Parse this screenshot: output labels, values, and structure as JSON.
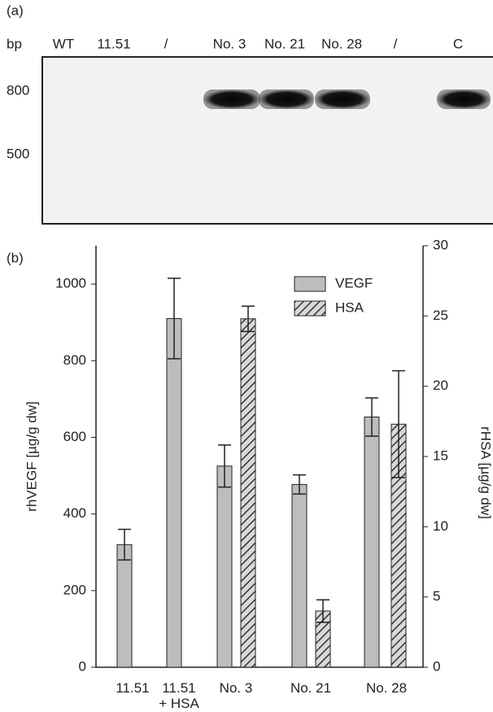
{
  "panel_a": {
    "label": "(a)",
    "unit": "bp",
    "lanes": [
      "WT",
      "11.51",
      "/",
      "No. 3",
      "No. 21",
      "No. 28",
      "/",
      "C"
    ],
    "markers": [
      "800",
      "500"
    ]
  },
  "chart_data": {
    "type": "bar",
    "label": "(b)",
    "categories": [
      "11.51",
      "11.51\n+ HSA",
      "No. 3",
      "No. 21",
      "No. 28"
    ],
    "ylabel": "rhVEGF [µg/g dw]",
    "y2label": "rHSA [µg/g dw]",
    "ylim": [
      0,
      1100
    ],
    "yticks": [
      0,
      200,
      400,
      600,
      800,
      1000
    ],
    "y2lim": [
      0,
      30
    ],
    "y2ticks": [
      0,
      5,
      10,
      15,
      20,
      25,
      30
    ],
    "legend": "upper right",
    "series": [
      {
        "name": "VEGF",
        "color": "#bdbdbd",
        "values": [
          320,
          910,
          525,
          477,
          653
        ],
        "errors": [
          40,
          105,
          55,
          25,
          50
        ]
      },
      {
        "name": "HSA",
        "color": "#6e6e6e",
        "hatch": true,
        "axis": "y2",
        "values": [
          null,
          null,
          24.8,
          4.0,
          17.3
        ],
        "errors": [
          null,
          null,
          0.9,
          0.8,
          3.8
        ]
      }
    ]
  }
}
